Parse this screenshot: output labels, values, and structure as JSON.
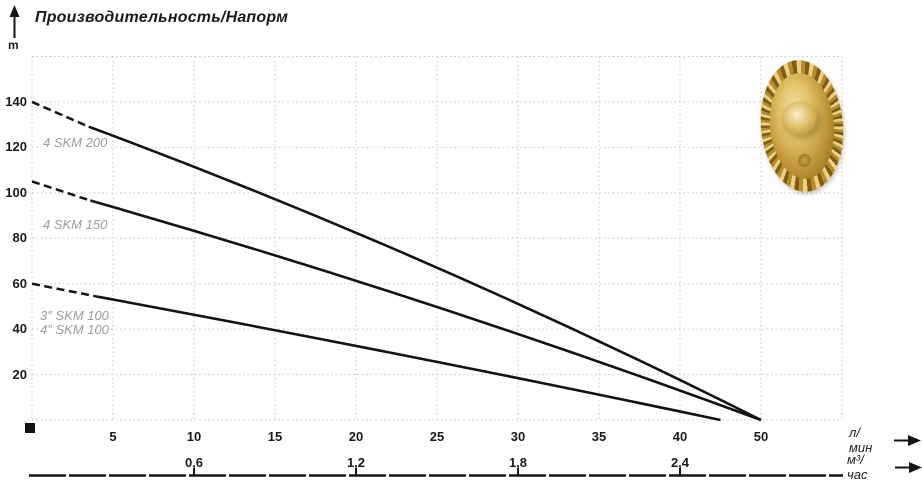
{
  "chart_data": {
    "type": "line",
    "title": "Производительность/Напорм",
    "ylabel": "m",
    "xlabel_primary": "л/мин",
    "xlabel_secondary": "м³/час",
    "x_axis_lmin_ticks": [
      5,
      10,
      15,
      20,
      25,
      30,
      35,
      40,
      50
    ],
    "x_axis_note": "tick positions equally spaced; value 45 is skipped between 40 and 50",
    "x_axis_m3h_ticks": [
      {
        "label": "0,6",
        "at_lmin": 10
      },
      {
        "label": "1,2",
        "at_lmin": 20
      },
      {
        "label": "1,8",
        "at_lmin": 30
      },
      {
        "label": "2,4",
        "at_lmin": 40
      }
    ],
    "y_ticks": [
      20,
      40,
      60,
      80,
      100,
      120,
      140
    ],
    "y_range": [
      0,
      160
    ],
    "grid": "dotted",
    "legend_position": "inline-left",
    "line_color": "#141414",
    "series": [
      {
        "name": "4 SKM 200",
        "points_q_h": [
          [
            0,
            140
          ],
          [
            50,
            0
          ]
        ],
        "dashed_until_q": 3.5
      },
      {
        "name": "4 SKM 150",
        "points_q_h": [
          [
            0,
            105
          ],
          [
            50,
            0
          ]
        ],
        "dashed_until_q": 3.6
      },
      {
        "name": "3″ SKM 100 / 4″ SKM 100",
        "labels": [
          "3″ SKM 100",
          "4″ SKM 100"
        ],
        "points_q_h": [
          [
            0,
            60
          ],
          [
            45,
            0
          ]
        ],
        "dashed_until_q": 4.1
      }
    ]
  }
}
